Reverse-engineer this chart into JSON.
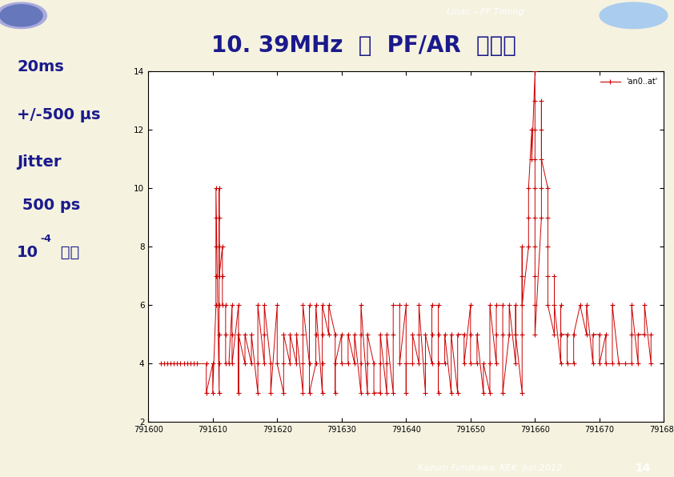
{
  "title": "10. 39MHz  と  PF/AR  の同期",
  "header": "Linac – PF Timing",
  "footer": "Kazuro Furukawa, KEK, Jun.2012.",
  "page_number": "14",
  "bg_color": "#f5f2e0",
  "plot_bg_color": "#ffffff",
  "title_color": "#1a1a8c",
  "data_color": "#cc0000",
  "bar_color": "#2222cc",
  "xmin": 791600,
  "xmax": 791680,
  "ymin": 2,
  "ymax": 14,
  "xticks": [
    791600,
    791610,
    791620,
    791630,
    791640,
    791650,
    791660,
    791670,
    791680
  ],
  "yticks": [
    2,
    4,
    6,
    8,
    10,
    12,
    14
  ],
  "legend_label": "'an0..at'",
  "left_lines": [
    "20ms",
    "+/-500 μs",
    "Jitter",
    " 500 ps",
    "10⁻⁴ 範囲"
  ]
}
